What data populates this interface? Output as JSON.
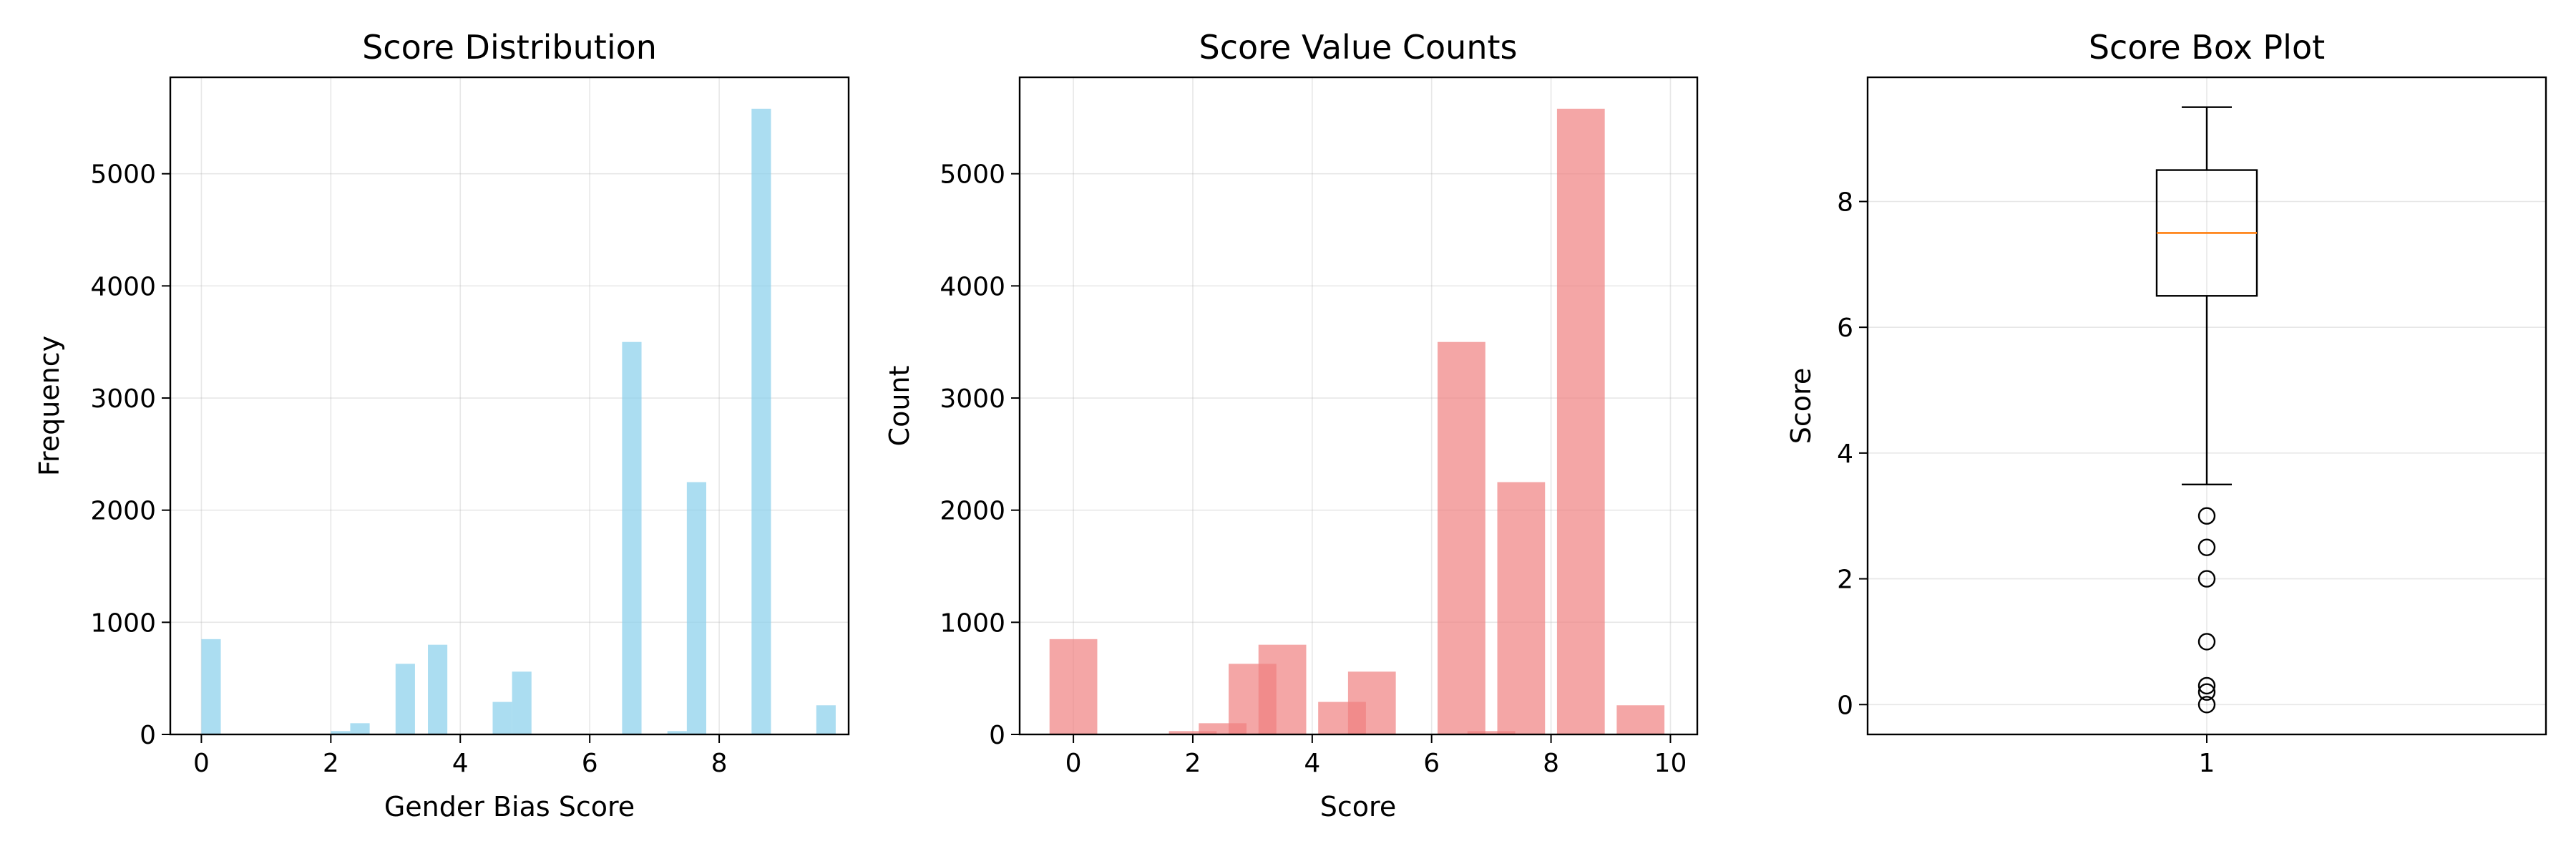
{
  "chart_data": [
    {
      "type": "bar",
      "title": "Score Distribution",
      "xlabel": "Gender Bias Score",
      "ylabel": "Frequency",
      "xlim": [
        -0.48,
        10.0
      ],
      "ylim": [
        0,
        5860
      ],
      "xticks": [
        0,
        2,
        4,
        6,
        8
      ],
      "yticks": [
        0,
        1000,
        2000,
        3000,
        4000,
        5000
      ],
      "grid": true,
      "color": "#87ceeb",
      "bin_width": 0.3,
      "bins": [
        {
          "x": 0.0,
          "count": 850
        },
        {
          "x": 2.0,
          "count": 30
        },
        {
          "x": 2.3,
          "count": 100
        },
        {
          "x": 3.0,
          "count": 630
        },
        {
          "x": 3.5,
          "count": 800
        },
        {
          "x": 4.5,
          "count": 290
        },
        {
          "x": 4.8,
          "count": 560
        },
        {
          "x": 6.5,
          "count": 3500
        },
        {
          "x": 7.2,
          "count": 30
        },
        {
          "x": 7.5,
          "count": 2250
        },
        {
          "x": 8.5,
          "count": 5580
        },
        {
          "x": 9.5,
          "count": 260
        }
      ]
    },
    {
      "type": "bar",
      "title": "Score Value Counts",
      "xlabel": "Score",
      "ylabel": "Count",
      "xlim": [
        -0.9,
        10.45
      ],
      "ylim": [
        0,
        5860
      ],
      "xticks": [
        0,
        2,
        4,
        6,
        8,
        10
      ],
      "yticks": [
        0,
        1000,
        2000,
        3000,
        4000,
        5000
      ],
      "grid": true,
      "color": "#f08080",
      "bar_width": 0.8,
      "categories": [
        0.0,
        2.0,
        2.5,
        3.0,
        3.5,
        4.5,
        5.0,
        6.5,
        7.0,
        7.5,
        8.5,
        9.5
      ],
      "values": [
        850,
        30,
        100,
        630,
        800,
        290,
        560,
        3500,
        30,
        2250,
        5580,
        260
      ]
    },
    {
      "type": "box",
      "title": "Score Box Plot",
      "xlabel": "",
      "ylabel": "Score",
      "xticks": [
        "1"
      ],
      "xlim": [
        0.5,
        1.5
      ],
      "ylim": [
        -0.475,
        9.975
      ],
      "yticks": [
        0,
        2,
        4,
        6,
        8
      ],
      "grid": true,
      "box": {
        "whislo": 3.5,
        "q1": 6.5,
        "med": 7.5,
        "q3": 8.5,
        "whishi": 9.5
      },
      "fliers": [
        3.0,
        2.5,
        2.0,
        1.0,
        0.3,
        0.2,
        0.0
      ],
      "median_color": "#ff7f0e"
    }
  ]
}
